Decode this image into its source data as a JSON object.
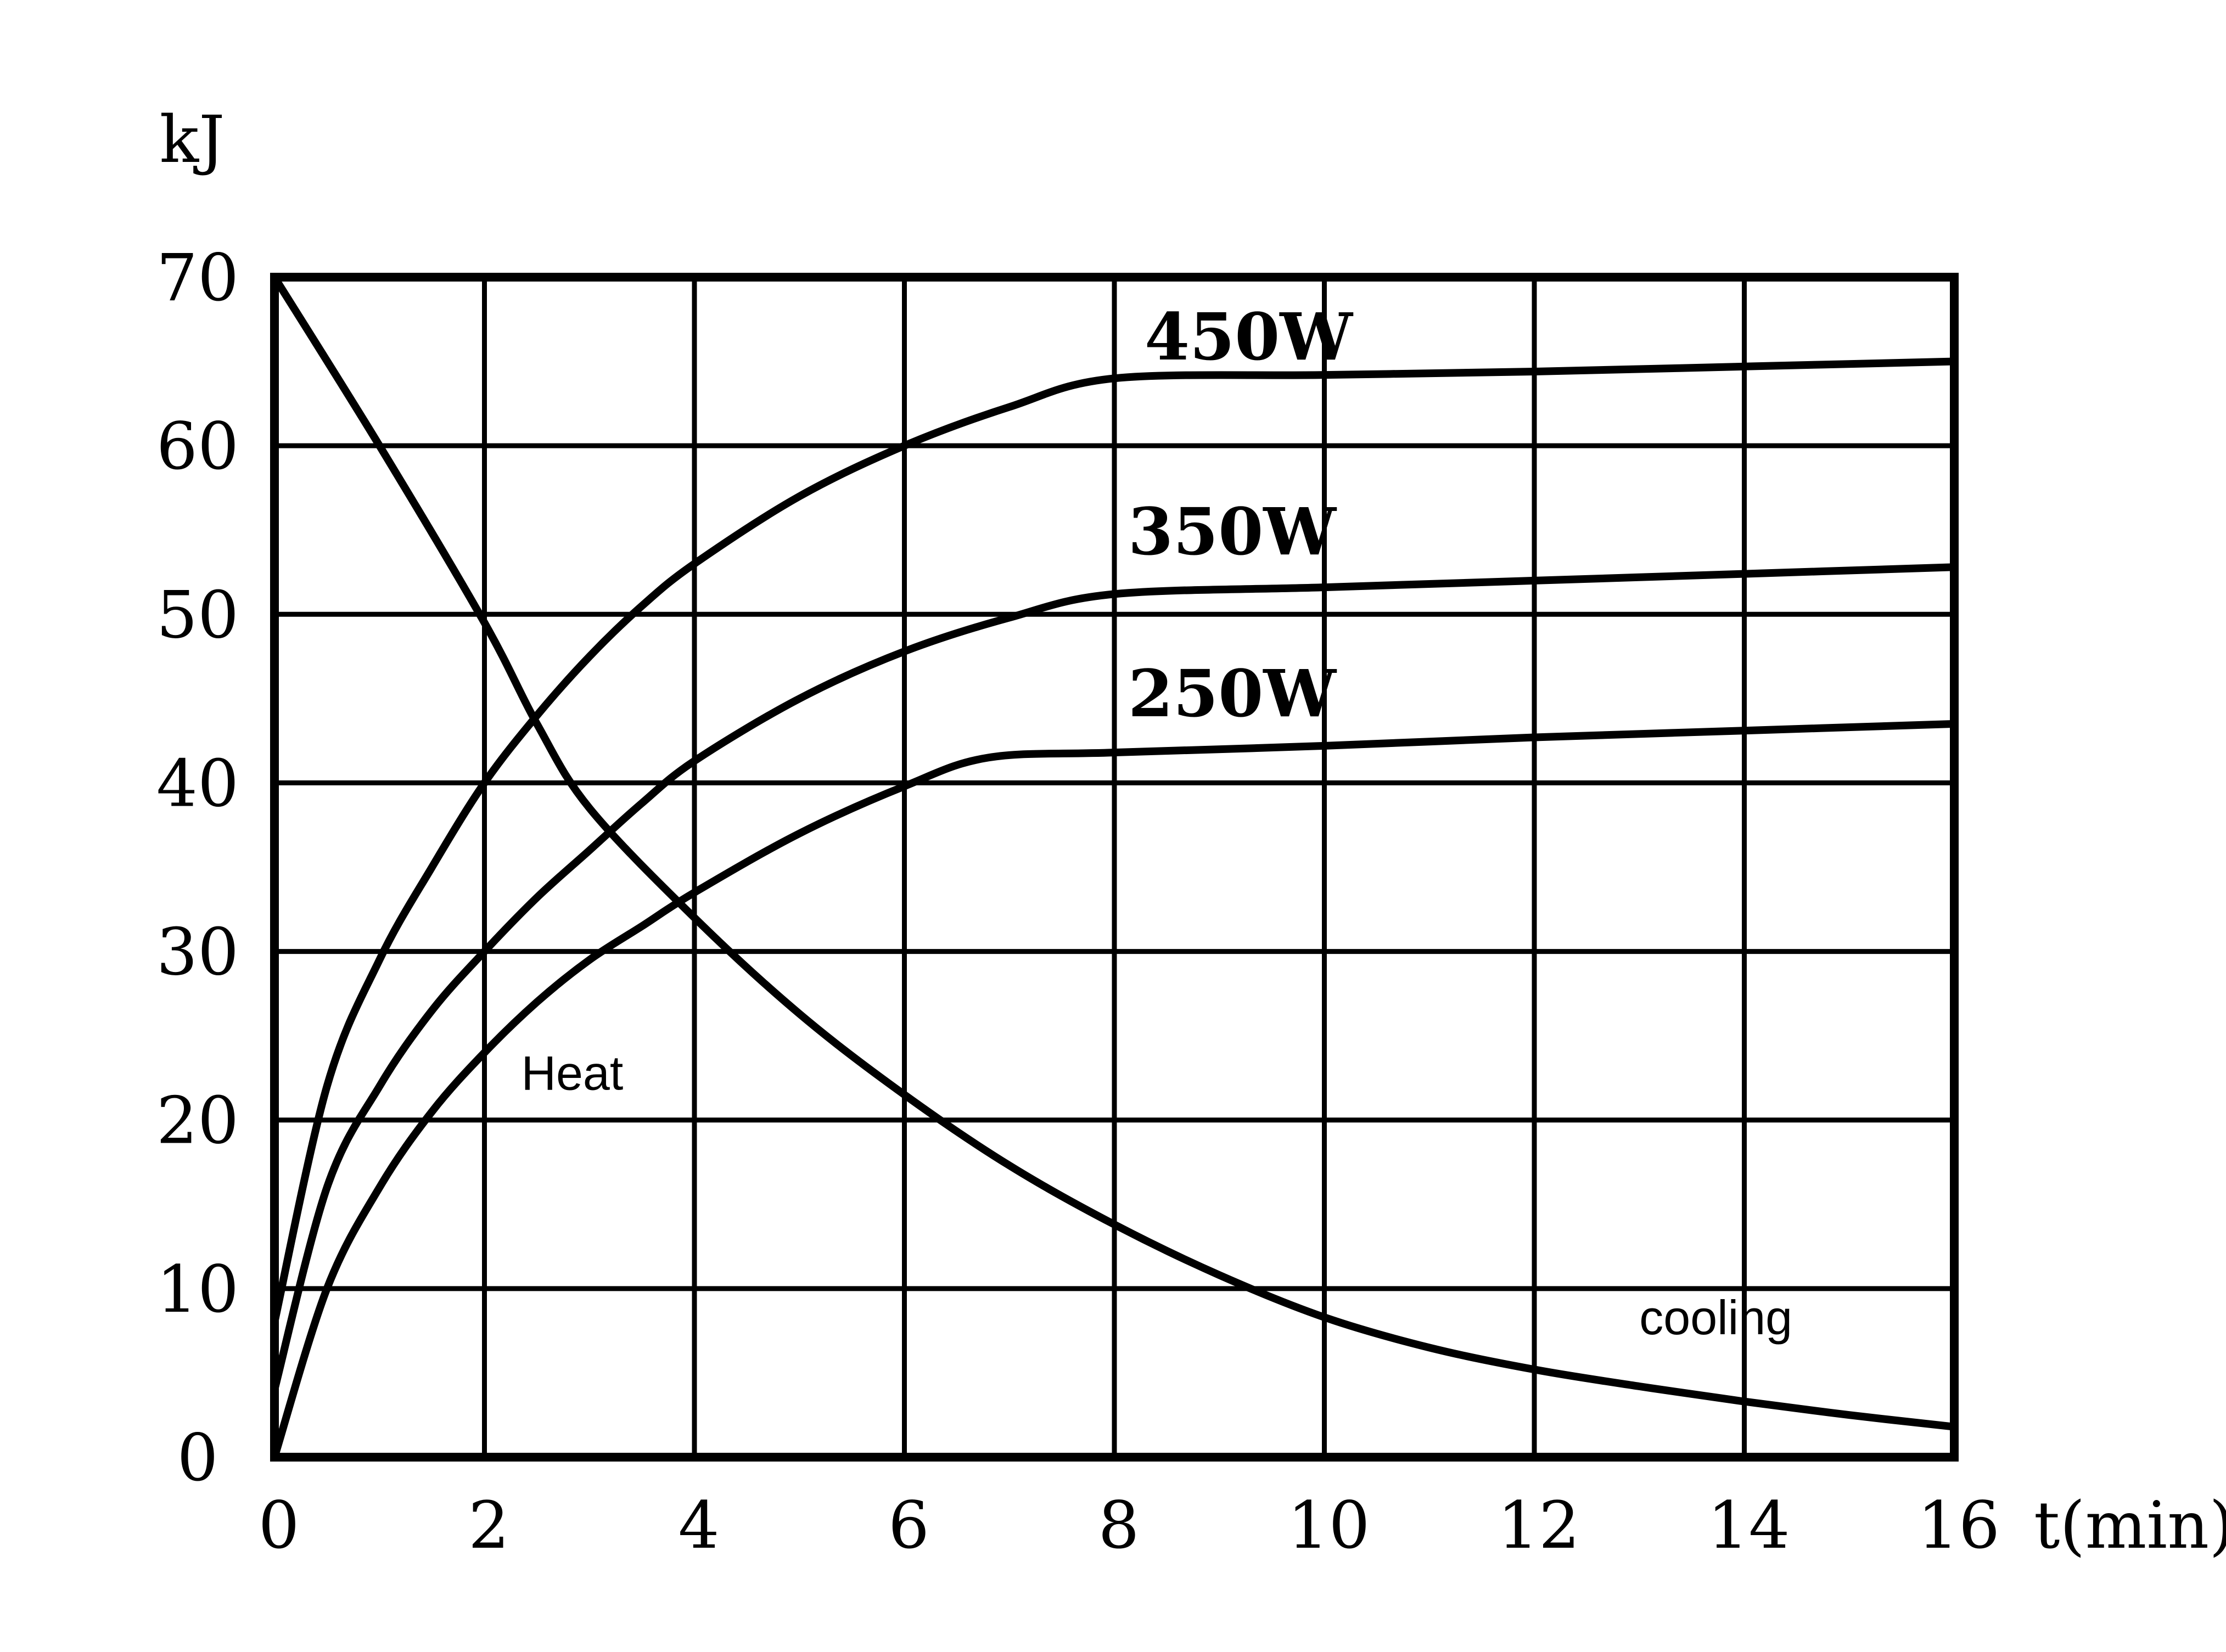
{
  "chart_data": {
    "type": "line",
    "title": "",
    "xlabel": "t(min)",
    "ylabel": "kJ",
    "xlim": [
      0,
      16
    ],
    "ylim": [
      0,
      70
    ],
    "xticks": [
      0,
      2,
      4,
      6,
      8,
      10,
      12,
      14,
      16
    ],
    "yticks": [
      0,
      10,
      20,
      30,
      40,
      50,
      60,
      70
    ],
    "grid": true,
    "series": [
      {
        "name": "450W",
        "x": [
          0,
          0.5,
          1,
          1.5,
          2,
          2.5,
          3,
          3.5,
          4,
          5,
          6,
          7,
          8,
          10,
          12,
          14,
          16
        ],
        "y": [
          8,
          22,
          29.5,
          35,
          40,
          44,
          47.5,
          50.5,
          53,
          57,
          60,
          62.3,
          64,
          64.2,
          64.4,
          64.7,
          65
        ]
      },
      {
        "name": "350W",
        "x": [
          0,
          0.5,
          1,
          1.5,
          2,
          2.5,
          3,
          3.5,
          4,
          5,
          6,
          7,
          8,
          10,
          12,
          14,
          16
        ],
        "y": [
          4,
          16,
          22,
          26.5,
          30,
          33.2,
          36,
          38.8,
          41.3,
          45,
          47.8,
          49.8,
          51.2,
          51.6,
          52,
          52.4,
          52.8
        ]
      },
      {
        "name": "250W",
        "x": [
          0,
          0.5,
          1,
          1.5,
          2,
          2.5,
          3,
          3.5,
          4,
          5,
          6,
          6.8,
          8,
          10,
          12,
          14,
          16
        ],
        "y": [
          0,
          10,
          16,
          20.5,
          24,
          27,
          29.5,
          31.5,
          33.5,
          37,
          39.8,
          41.5,
          41.8,
          42.2,
          42.7,
          43.1,
          43.5
        ]
      },
      {
        "name": "Heat",
        "x": [
          0,
          1,
          2,
          2.5,
          3,
          4,
          5,
          6,
          7,
          8,
          9,
          10,
          11,
          12,
          13,
          14,
          15,
          16
        ],
        "y": [
          70,
          60,
          49.5,
          43.5,
          38.5,
          32,
          26.3,
          21.5,
          17.3,
          13.8,
          10.8,
          8.3,
          6.5,
          5.2,
          4.2,
          3.3,
          2.5,
          1.8
        ]
      }
    ],
    "annotations": [
      {
        "text": "Heat",
        "x": 2.35,
        "y": 21.8
      },
      {
        "text": "cooling",
        "x": 13.0,
        "y": 7.3
      }
    ]
  }
}
